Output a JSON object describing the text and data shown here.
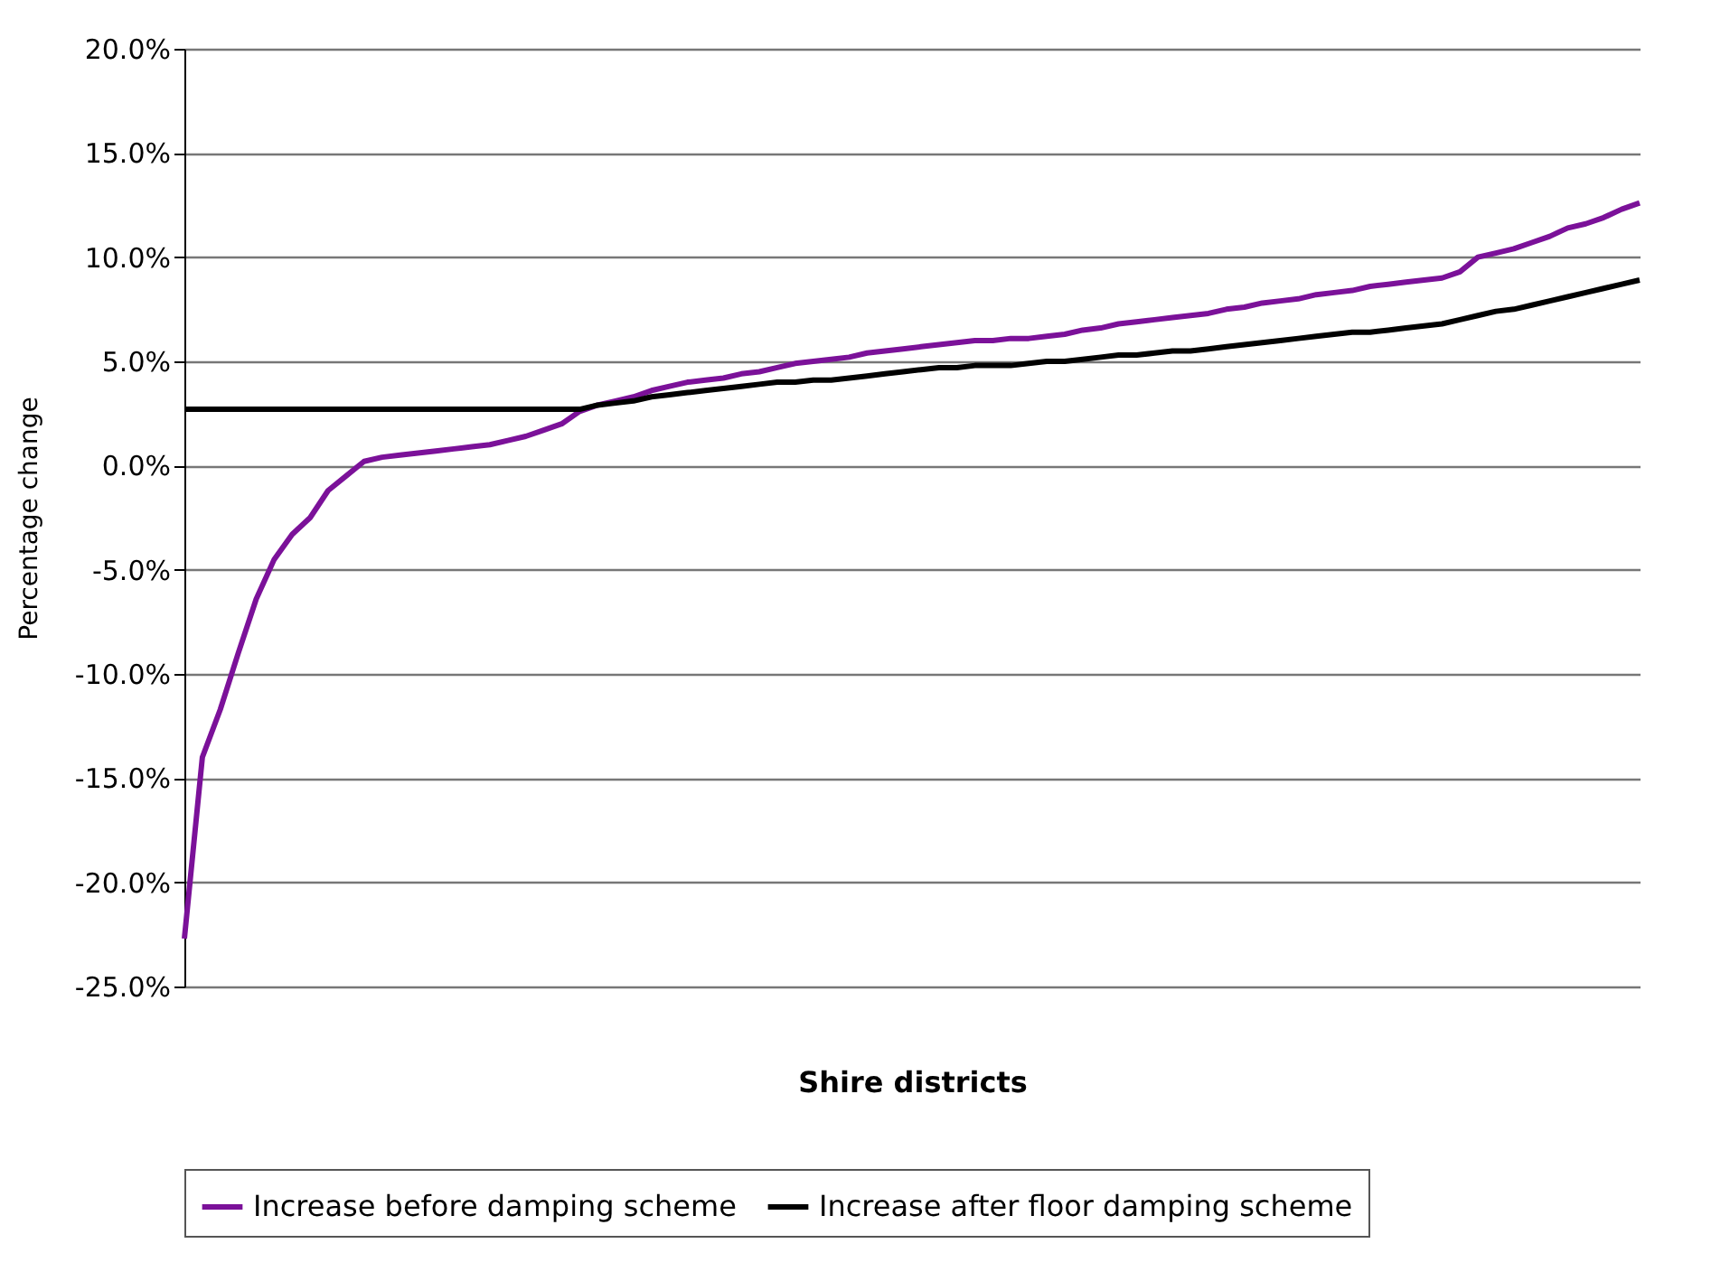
{
  "chart_data": {
    "type": "line",
    "xlabel": "Shire districts",
    "ylabel": "Percentage change",
    "categories": [
      null,
      null,
      null,
      null,
      null,
      null,
      null,
      null,
      null,
      null,
      null,
      null,
      null,
      null,
      null,
      null,
      null,
      null,
      null,
      null,
      null,
      null,
      null,
      null,
      null,
      null,
      null,
      null,
      null,
      null,
      null,
      null,
      null,
      null,
      null,
      null,
      null,
      null,
      null,
      null,
      null,
      null,
      null,
      null,
      null,
      null,
      null,
      null,
      null,
      null,
      null,
      null,
      null,
      null,
      null,
      null,
      null,
      null,
      null,
      null,
      null,
      null,
      null,
      null,
      null,
      null,
      null,
      null,
      null,
      null,
      null,
      null,
      null,
      null,
      null,
      null,
      null,
      null,
      null,
      null,
      null,
      null
    ],
    "series": [
      {
        "name": "Increase before damping scheme",
        "color": "#7b1199",
        "values": [
          -22.7,
          -14.0,
          -11.7,
          -9.0,
          -6.4,
          -4.5,
          -3.3,
          -2.5,
          -1.2,
          -0.5,
          0.2,
          0.4,
          0.5,
          0.6,
          0.7,
          0.8,
          0.9,
          1.0,
          1.2,
          1.4,
          1.7,
          2.0,
          2.6,
          2.9,
          3.1,
          3.3,
          3.6,
          3.8,
          4.0,
          4.1,
          4.2,
          4.4,
          4.5,
          4.7,
          4.9,
          5.0,
          5.1,
          5.2,
          5.4,
          5.5,
          5.6,
          5.7,
          5.8,
          5.9,
          6.0,
          6.0,
          6.1,
          6.1,
          6.2,
          6.3,
          6.5,
          6.6,
          6.8,
          6.9,
          7.0,
          7.1,
          7.2,
          7.3,
          7.5,
          7.6,
          7.8,
          7.9,
          8.0,
          8.2,
          8.3,
          8.4,
          8.6,
          8.7,
          8.8,
          8.9,
          9.0,
          9.3,
          10.0,
          10.2,
          10.4,
          10.7,
          11.0,
          11.4,
          11.6,
          11.9,
          12.3,
          12.6
        ]
      },
      {
        "name": "Increase after floor damping scheme",
        "color": "#000000",
        "values": [
          2.7,
          2.7,
          2.7,
          2.7,
          2.7,
          2.7,
          2.7,
          2.7,
          2.7,
          2.7,
          2.7,
          2.7,
          2.7,
          2.7,
          2.7,
          2.7,
          2.7,
          2.7,
          2.7,
          2.7,
          2.7,
          2.7,
          2.7,
          2.9,
          3.0,
          3.1,
          3.3,
          3.4,
          3.5,
          3.6,
          3.7,
          3.8,
          3.9,
          4.0,
          4.0,
          4.1,
          4.1,
          4.2,
          4.3,
          4.4,
          4.5,
          4.6,
          4.7,
          4.7,
          4.8,
          4.8,
          4.8,
          4.9,
          5.0,
          5.0,
          5.1,
          5.2,
          5.3,
          5.3,
          5.4,
          5.5,
          5.5,
          5.6,
          5.7,
          5.8,
          5.9,
          6.0,
          6.1,
          6.2,
          6.3,
          6.4,
          6.4,
          6.5,
          6.6,
          6.7,
          6.8,
          7.0,
          7.2,
          7.4,
          7.5,
          7.7,
          7.9,
          8.1,
          8.3,
          8.5,
          8.7,
          8.9
        ]
      }
    ],
    "ylim": [
      -25,
      20
    ],
    "yticks": [
      {
        "value": -25,
        "label": "-25.0%"
      },
      {
        "value": -20,
        "label": "-20.0%"
      },
      {
        "value": -15,
        "label": "-15.0%"
      },
      {
        "value": -10,
        "label": "-10.0%"
      },
      {
        "value": -5,
        "label": "-5.0%"
      },
      {
        "value": 0,
        "label": "0.0%"
      },
      {
        "value": 5,
        "label": "5.0%"
      },
      {
        "value": 10,
        "label": "10.0%"
      },
      {
        "value": 15,
        "label": "15.0%"
      },
      {
        "value": 20,
        "label": "20.0%"
      }
    ],
    "grid": "y",
    "legend": "bottom"
  }
}
